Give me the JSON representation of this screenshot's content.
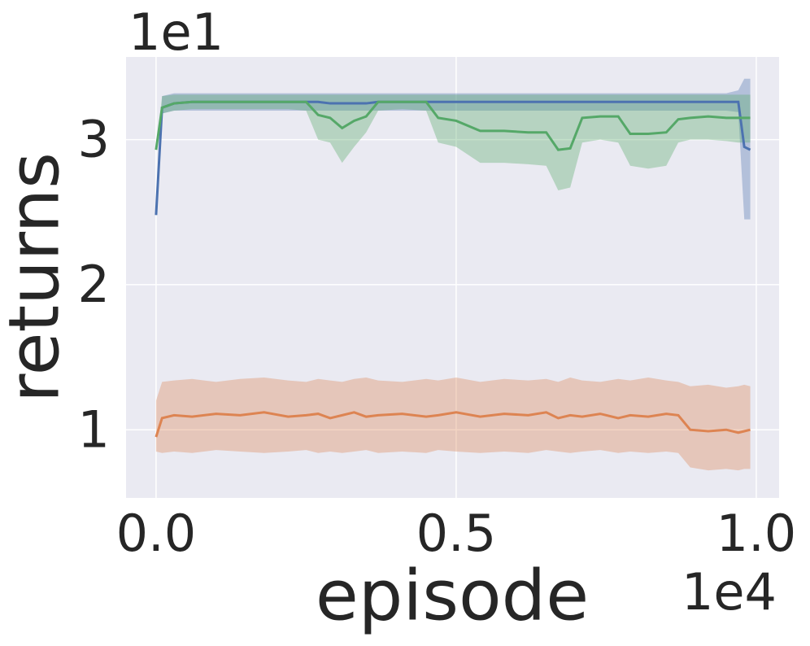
{
  "chart_data": {
    "type": "line_band",
    "x_label": "episode",
    "y_label": "returns",
    "x_offset": "1e4",
    "y_offset": "1e1",
    "xlim": [
      -0.05,
      1.038
    ],
    "ylim": [
      0.53,
      3.57
    ],
    "xticks": [
      {
        "value": 0,
        "label": "0.0"
      },
      0.5,
      {
        "value": 1,
        "label": "1.0"
      }
    ],
    "yticks": [
      1,
      2,
      3
    ],
    "grid": true,
    "x": [
      0,
      0.01,
      0.03,
      0.06,
      0.1,
      0.14,
      0.18,
      0.22,
      0.25,
      0.27,
      0.29,
      0.31,
      0.33,
      0.35,
      0.37,
      0.41,
      0.45,
      0.47,
      0.5,
      0.54,
      0.58,
      0.62,
      0.65,
      0.67,
      0.69,
      0.71,
      0.74,
      0.77,
      0.79,
      0.82,
      0.85,
      0.87,
      0.89,
      0.92,
      0.95,
      0.97,
      0.98,
      0.99
    ],
    "series": [
      {
        "color": "#4c72b0",
        "values": [
          2.48,
          3.22,
          3.25,
          3.26,
          3.26,
          3.26,
          3.26,
          3.26,
          3.26,
          3.26,
          3.25,
          3.25,
          3.25,
          3.25,
          3.26,
          3.26,
          3.26,
          3.26,
          3.26,
          3.26,
          3.26,
          3.26,
          3.26,
          3.26,
          3.26,
          3.26,
          3.26,
          3.26,
          3.26,
          3.26,
          3.26,
          3.26,
          3.26,
          3.26,
          3.26,
          3.26,
          2.95,
          2.93
        ],
        "lower": [
          2.48,
          3.18,
          3.2,
          3.2,
          3.2,
          3.2,
          3.2,
          3.2,
          3.2,
          3.2,
          3.2,
          3.2,
          3.2,
          3.2,
          3.2,
          3.2,
          3.2,
          3.2,
          3.2,
          3.2,
          3.2,
          3.2,
          3.2,
          3.2,
          3.2,
          3.2,
          3.2,
          3.2,
          3.2,
          3.2,
          3.2,
          3.2,
          3.2,
          3.2,
          3.2,
          3.19,
          2.45,
          2.45
        ],
        "upper": [
          2.48,
          3.3,
          3.32,
          3.32,
          3.32,
          3.32,
          3.32,
          3.32,
          3.32,
          3.32,
          3.32,
          3.32,
          3.32,
          3.32,
          3.32,
          3.32,
          3.32,
          3.32,
          3.32,
          3.32,
          3.32,
          3.32,
          3.32,
          3.32,
          3.32,
          3.32,
          3.32,
          3.32,
          3.32,
          3.32,
          3.32,
          3.32,
          3.32,
          3.32,
          3.32,
          3.34,
          3.42,
          3.42
        ]
      },
      {
        "color": "#dd8452",
        "values": [
          0.95,
          1.08,
          1.1,
          1.09,
          1.11,
          1.1,
          1.12,
          1.09,
          1.1,
          1.11,
          1.08,
          1.1,
          1.12,
          1.09,
          1.1,
          1.11,
          1.09,
          1.1,
          1.12,
          1.09,
          1.11,
          1.1,
          1.12,
          1.08,
          1.1,
          1.09,
          1.11,
          1.08,
          1.1,
          1.09,
          1.11,
          1.1,
          1.0,
          0.99,
          1.0,
          0.98,
          0.99,
          1.0
        ],
        "lower": [
          0.85,
          0.84,
          0.85,
          0.84,
          0.86,
          0.85,
          0.84,
          0.85,
          0.86,
          0.84,
          0.85,
          0.84,
          0.85,
          0.86,
          0.84,
          0.85,
          0.84,
          0.86,
          0.85,
          0.84,
          0.85,
          0.84,
          0.86,
          0.85,
          0.84,
          0.85,
          0.86,
          0.84,
          0.85,
          0.84,
          0.85,
          0.84,
          0.74,
          0.72,
          0.73,
          0.72,
          0.73,
          0.73
        ],
        "upper": [
          1.2,
          1.33,
          1.34,
          1.35,
          1.33,
          1.35,
          1.36,
          1.34,
          1.33,
          1.35,
          1.34,
          1.33,
          1.35,
          1.36,
          1.34,
          1.33,
          1.35,
          1.34,
          1.36,
          1.33,
          1.35,
          1.34,
          1.35,
          1.33,
          1.36,
          1.34,
          1.33,
          1.35,
          1.34,
          1.36,
          1.34,
          1.33,
          1.3,
          1.31,
          1.29,
          1.3,
          1.31,
          1.3
        ]
      },
      {
        "color": "#55a868",
        "values": [
          2.93,
          3.22,
          3.25,
          3.26,
          3.26,
          3.26,
          3.26,
          3.26,
          3.26,
          3.17,
          3.15,
          3.08,
          3.13,
          3.16,
          3.26,
          3.26,
          3.26,
          3.15,
          3.13,
          3.06,
          3.06,
          3.05,
          3.05,
          2.93,
          2.94,
          3.15,
          3.16,
          3.16,
          3.04,
          3.04,
          3.05,
          3.14,
          3.15,
          3.16,
          3.15,
          3.15,
          3.15,
          3.15
        ],
        "lower": [
          2.93,
          3.18,
          3.2,
          3.21,
          3.21,
          3.21,
          3.21,
          3.21,
          3.2,
          3.0,
          2.98,
          2.84,
          2.95,
          3.05,
          3.2,
          3.21,
          3.2,
          2.98,
          2.95,
          2.84,
          2.84,
          2.83,
          2.82,
          2.65,
          2.67,
          2.98,
          3.0,
          2.98,
          2.82,
          2.8,
          2.82,
          2.98,
          3.0,
          3.0,
          2.99,
          2.98,
          2.98,
          2.98
        ],
        "upper": [
          2.93,
          3.3,
          3.31,
          3.31,
          3.31,
          3.31,
          3.31,
          3.31,
          3.31,
          3.31,
          3.31,
          3.31,
          3.31,
          3.31,
          3.31,
          3.31,
          3.31,
          3.31,
          3.31,
          3.31,
          3.31,
          3.31,
          3.31,
          3.31,
          3.31,
          3.31,
          3.31,
          3.31,
          3.31,
          3.31,
          3.31,
          3.31,
          3.31,
          3.31,
          3.31,
          3.31,
          3.31,
          3.31
        ]
      }
    ]
  }
}
